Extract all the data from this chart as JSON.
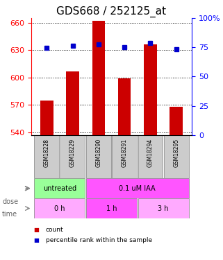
{
  "title": "GDS668 / 252125_at",
  "samples": [
    "GSM18228",
    "GSM18229",
    "GSM18290",
    "GSM18291",
    "GSM18294",
    "GSM18295"
  ],
  "counts": [
    575,
    607,
    662,
    599,
    636,
    568
  ],
  "percentiles": [
    74.5,
    76.5,
    77.5,
    75.0,
    78.5,
    73.5
  ],
  "ylim_left": [
    537,
    665
  ],
  "ylim_right": [
    0,
    100
  ],
  "yticks_left": [
    540,
    570,
    600,
    630,
    660
  ],
  "yticks_right": [
    0,
    25,
    50,
    75,
    100
  ],
  "bar_color": "#cc0000",
  "dot_color": "#0000cc",
  "bar_width": 0.5,
  "dose_labels": [
    {
      "text": "untreated",
      "cols": [
        0,
        1
      ],
      "color": "#99ff99"
    },
    {
      "text": "0.1 uM IAA",
      "cols": [
        2,
        3,
        4,
        5
      ],
      "color": "#ff55ff"
    }
  ],
  "time_labels": [
    {
      "text": "0 h",
      "cols": [
        0,
        1
      ],
      "color": "#ffaaff"
    },
    {
      "text": "1 h",
      "cols": [
        2,
        3
      ],
      "color": "#ff55ff"
    },
    {
      "text": "3 h",
      "cols": [
        4,
        5
      ],
      "color": "#ffaaff"
    }
  ],
  "dose_row_label": "dose",
  "time_row_label": "time",
  "legend_count_label": "count",
  "legend_pct_label": "percentile rank within the sample",
  "sample_box_color": "#cccccc",
  "title_fontsize": 11,
  "tick_fontsize": 8,
  "label_fontsize": 7
}
